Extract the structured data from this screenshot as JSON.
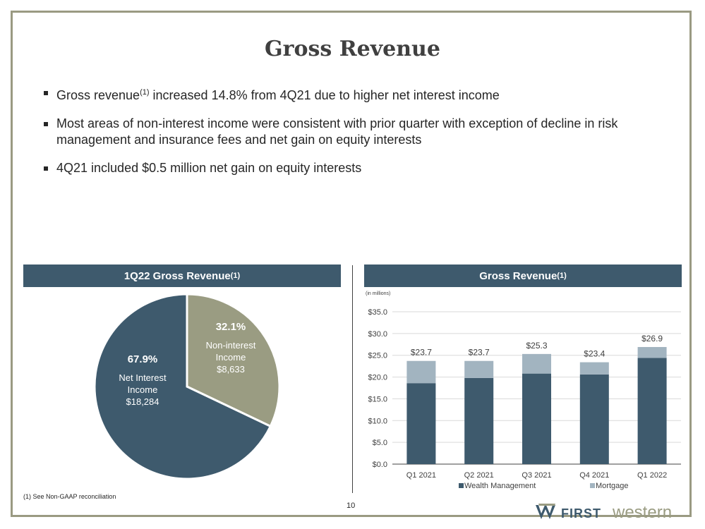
{
  "title": "Gross Revenue",
  "bullets": [
    {
      "pre": "Gross revenue",
      "sup": "(1)",
      "post": " increased 14.8% from 4Q21 due to higher net interest income"
    },
    {
      "pre": "Most areas of non-interest income were consistent with prior quarter with exception of decline in risk management and insurance fees and net gain on equity interests",
      "sup": "",
      "post": ""
    },
    {
      "pre": "4Q21 included $0.5 million net gain on equity interests",
      "sup": "",
      "post": ""
    }
  ],
  "pie_panel": {
    "title": "1Q22 Gross Revenue",
    "title_sup": "(1)"
  },
  "bar_panel": {
    "title": "Gross Revenue",
    "title_sup": "(1)",
    "units_note": "(in millions)"
  },
  "chart_data": [
    {
      "type": "pie",
      "title": "1Q22 Gross Revenue(1)",
      "slices": [
        {
          "label_lines": [
            "Net Interest",
            "Income",
            "$18,284"
          ],
          "percent_label": "67.9%",
          "value": 18284,
          "percent": 67.9,
          "color": "#3e5a6d"
        },
        {
          "label_lines": [
            "Non-interest",
            "Income",
            "$8,633"
          ],
          "percent_label": "32.1%",
          "value": 8633,
          "percent": 32.1,
          "color": "#9a9c82"
        }
      ]
    },
    {
      "type": "bar",
      "stacked": true,
      "title": "Gross Revenue(1)",
      "units": "(in millions)",
      "categories": [
        "Q1 2021",
        "Q2 2021",
        "Q3 2021",
        "Q4 2021",
        "Q1 2022"
      ],
      "series": [
        {
          "name": "Wealth Management",
          "values": [
            18.6,
            19.8,
            20.8,
            20.6,
            24.4
          ],
          "color": "#3e5a6d"
        },
        {
          "name": "Mortgage",
          "values": [
            5.1,
            3.9,
            4.5,
            2.8,
            2.5
          ],
          "color": "#a2b4c0"
        }
      ],
      "totals": [
        "$23.7",
        "$23.7",
        "$25.3",
        "$23.4",
        "$26.9"
      ],
      "total_values": [
        23.7,
        23.7,
        25.3,
        23.4,
        26.9
      ],
      "ylim": [
        0,
        35
      ],
      "yticks": [
        0,
        5,
        10,
        15,
        20,
        25,
        30,
        35
      ],
      "ytick_labels": [
        "$0.0",
        "$5.0",
        "$10.0",
        "$15.0",
        "$20.0",
        "$25.0",
        "$30.0",
        "$35.0"
      ],
      "grid": true,
      "legend": "bottom"
    }
  ],
  "footnote": "(1) See Non-GAAP reconciliation",
  "page_number": "10",
  "logo": {
    "first": "FIRST",
    "second": "western"
  }
}
